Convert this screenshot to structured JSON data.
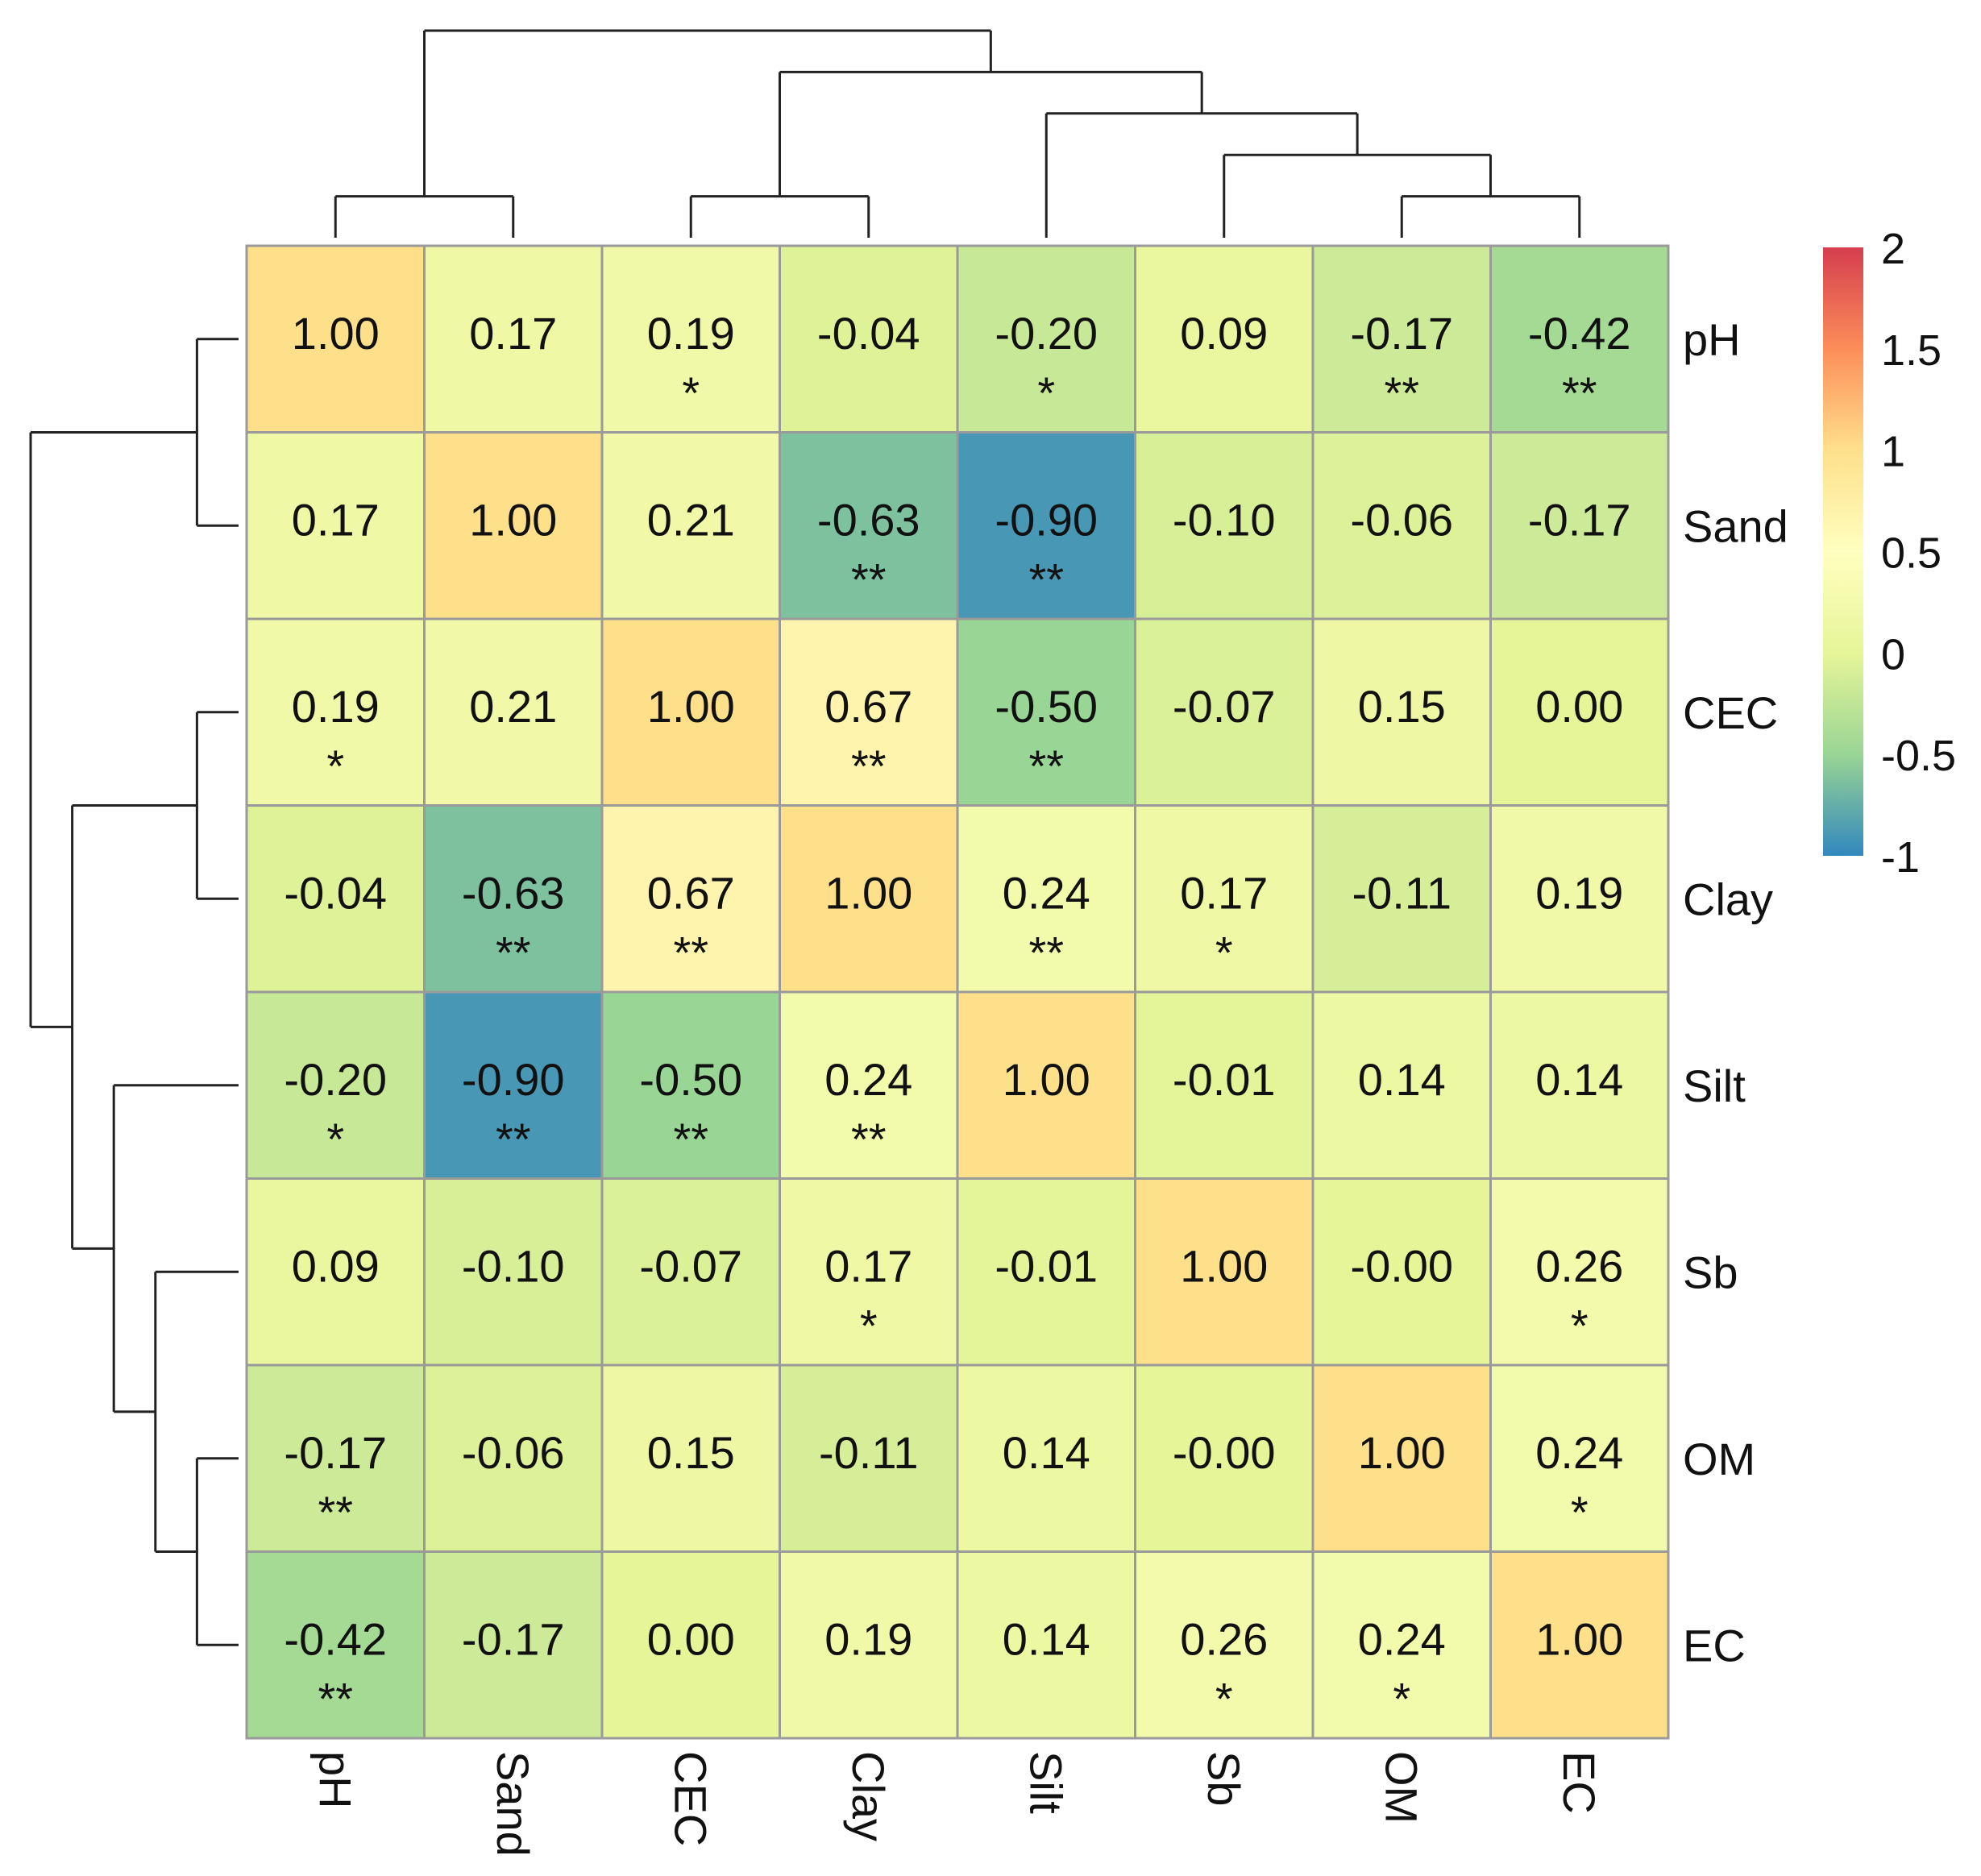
{
  "chart_data": {
    "type": "heatmap",
    "title": "",
    "variables": [
      "pH",
      "Sand",
      "CEC",
      "Clay",
      "Silt",
      "Sb",
      "OM",
      "EC"
    ],
    "row_labels": [
      "pH",
      "Sand",
      "CEC",
      "Clay",
      "Silt",
      "Sb",
      "OM",
      "EC"
    ],
    "col_labels": [
      "pH",
      "Sand",
      "CEC",
      "Clay",
      "Silt",
      "Sb",
      "OM",
      "EC"
    ],
    "values": [
      [
        1.0,
        0.17,
        0.19,
        -0.04,
        -0.2,
        0.09,
        -0.17,
        -0.42
      ],
      [
        0.17,
        1.0,
        0.21,
        -0.63,
        -0.9,
        -0.1,
        -0.06,
        -0.17
      ],
      [
        0.19,
        0.21,
        1.0,
        0.67,
        -0.5,
        -0.07,
        0.15,
        0.0
      ],
      [
        -0.04,
        -0.63,
        0.67,
        1.0,
        0.24,
        0.17,
        -0.11,
        0.19
      ],
      [
        -0.2,
        -0.9,
        -0.5,
        0.24,
        1.0,
        -0.01,
        0.14,
        0.14
      ],
      [
        0.09,
        -0.1,
        -0.07,
        0.17,
        -0.01,
        1.0,
        -0.0,
        0.26
      ],
      [
        -0.17,
        -0.06,
        0.15,
        -0.11,
        0.14,
        -0.0,
        1.0,
        0.24
      ],
      [
        -0.42,
        -0.17,
        0.0,
        0.19,
        0.14,
        0.26,
        0.24,
        1.0
      ]
    ],
    "labels": [
      [
        "1.00",
        "0.17",
        "0.19",
        "-0.04",
        "-0.20",
        "0.09",
        "-0.17",
        "-0.42"
      ],
      [
        "0.17",
        "1.00",
        "0.21",
        "-0.63",
        "-0.90",
        "-0.10",
        "-0.06",
        "-0.17"
      ],
      [
        "0.19",
        "0.21",
        "1.00",
        "0.67",
        "-0.50",
        "-0.07",
        "0.15",
        "0.00"
      ],
      [
        "-0.04",
        "-0.63",
        "0.67",
        "1.00",
        "0.24",
        "0.17",
        "-0.11",
        "0.19"
      ],
      [
        "-0.20",
        "-0.90",
        "-0.50",
        "0.24",
        "1.00",
        "-0.01",
        "0.14",
        "0.14"
      ],
      [
        "0.09",
        "-0.10",
        "-0.07",
        "0.17",
        "-0.01",
        "1.00",
        "-0.00",
        "0.26"
      ],
      [
        "-0.17",
        "-0.06",
        "0.15",
        "-0.11",
        "0.14",
        "-0.00",
        "1.00",
        "0.24"
      ],
      [
        "-0.42",
        "-0.17",
        "0.00",
        "0.19",
        "0.14",
        "0.26",
        "0.24",
        "1.00"
      ]
    ],
    "significance": [
      [
        "",
        "",
        "*",
        "",
        "*",
        "",
        "**",
        "**"
      ],
      [
        "",
        "",
        "",
        "**",
        "**",
        "",
        "",
        ""
      ],
      [
        "*",
        "",
        "",
        "**",
        "**",
        "",
        "",
        ""
      ],
      [
        "",
        "**",
        "**",
        "",
        "**",
        "*",
        "",
        ""
      ],
      [
        "*",
        "**",
        "**",
        "**",
        "",
        "",
        "",
        ""
      ],
      [
        "",
        "",
        "",
        "*",
        "",
        "",
        "",
        "*"
      ],
      [
        "**",
        "",
        "",
        "",
        "",
        "",
        "",
        "*"
      ],
      [
        "**",
        "",
        "",
        "",
        "",
        "*",
        "*",
        ""
      ]
    ],
    "color_scale": {
      "min": -1,
      "max": 2,
      "ticks": [
        2,
        1.5,
        1,
        0.5,
        0,
        -0.5,
        -1
      ],
      "tick_labels": [
        "2",
        "1.5",
        "1",
        "0.5",
        "0",
        "-0.5",
        "-1"
      ],
      "stops": [
        {
          "value": -1.0,
          "color": "#3288bd"
        },
        {
          "value": -0.5,
          "color": "#99d594"
        },
        {
          "value": 0.0,
          "color": "#e6f598"
        },
        {
          "value": 0.5,
          "color": "#ffffbf"
        },
        {
          "value": 1.0,
          "color": "#fee08b"
        },
        {
          "value": 1.5,
          "color": "#fc8d59"
        },
        {
          "value": 2.0,
          "color": "#d53e4f"
        }
      ]
    },
    "row_dendrogram": "((pH,Sand),((CEC,Clay),(Silt,(Sb,(OM,EC)))))",
    "col_dendrogram": "((pH,Sand),((CEC,Clay),(Silt,(Sb,(OM,EC)))))"
  }
}
